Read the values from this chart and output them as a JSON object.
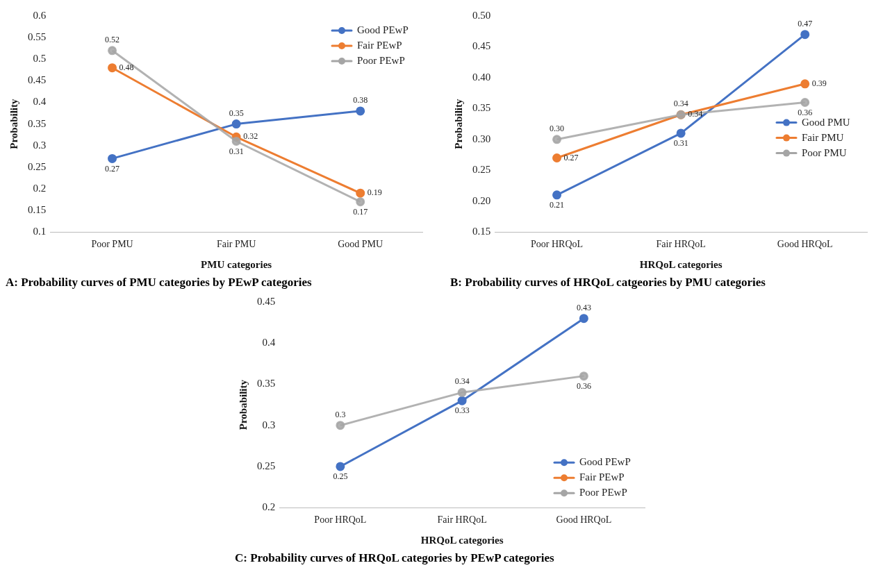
{
  "chart_data": [
    {
      "type": "line",
      "title": "A: Probability curves of PMU categories by PEwP categories",
      "xlabel": "PMU categories",
      "ylabel": "Probability",
      "categories": [
        "Poor PMU",
        "Fair PMU",
        "Good PMU"
      ],
      "series": [
        {
          "name": "Good PEwP",
          "color": "#4472c4",
          "values": [
            0.27,
            0.35,
            0.38
          ],
          "value_labels": [
            "0.27",
            "0.35",
            "0.38"
          ]
        },
        {
          "name": "Fair PEwP",
          "color": "#ed7d31",
          "values": [
            0.48,
            0.32,
            0.19
          ],
          "value_labels": [
            "0.48",
            "0.32",
            "0.19"
          ]
        },
        {
          "name": "Poor PEwP",
          "color": "#a5a5a5",
          "values": [
            0.52,
            0.31,
            0.17
          ],
          "value_labels": [
            "0.52",
            "0.31",
            "0.17"
          ]
        }
      ],
      "ylim": [
        0.1,
        0.6
      ],
      "yticks": [
        0.1,
        0.15,
        0.2,
        0.25,
        0.3,
        0.35,
        0.4,
        0.45,
        0.5,
        0.55,
        0.6
      ],
      "grid": false,
      "legend": "top right",
      "marker": "circle",
      "line_style": "solid"
    },
    {
      "type": "line",
      "title": "B: Probability curves of HRQoL catgeories by PMU categories",
      "xlabel": "HRQoL categories",
      "ylabel": "Probability",
      "categories": [
        "Poor HRQoL",
        "Fair HRQoL",
        "Good HRQoL"
      ],
      "series": [
        {
          "name": "Good PMU",
          "color": "#4472c4",
          "values": [
            0.21,
            0.31,
            0.47
          ],
          "value_labels": [
            "0.21",
            "0.31",
            "0.47"
          ]
        },
        {
          "name": "Fair PMU",
          "color": "#ed7d31",
          "values": [
            0.27,
            0.34,
            0.39
          ],
          "value_labels": [
            "0.27",
            "0.34",
            "0.39"
          ]
        },
        {
          "name": "Poor PMU",
          "color": "#a5a5a5",
          "values": [
            0.3,
            0.34,
            0.36
          ],
          "value_labels": [
            "0.30",
            "0.34",
            "0.36"
          ]
        }
      ],
      "ylim": [
        0.15,
        0.5
      ],
      "yticks": [
        {
          "value": 0.15,
          "label": "0.15"
        },
        {
          "value": 0.2,
          "label": "0.20"
        },
        {
          "value": 0.25,
          "label": "0.25"
        },
        {
          "value": 0.3,
          "label": "0.30"
        },
        {
          "value": 0.35,
          "label": "0.35"
        },
        {
          "value": 0.4,
          "label": "0.40"
        },
        {
          "value": 0.45,
          "label": "0.45"
        },
        {
          "value": 0.5,
          "label": "0.50"
        }
      ],
      "grid": false,
      "legend": "right",
      "marker": "circle",
      "line_style": "solid"
    },
    {
      "type": "line",
      "title": "C: Probability curves of HRQoL categories by PEwP categories",
      "xlabel": "HRQoL categories",
      "ylabel": "Probability",
      "categories": [
        "Poor HRQoL",
        "Fair HRQoL",
        "Good HRQoL"
      ],
      "series": [
        {
          "name": "Good PEwP",
          "color": "#4472c4",
          "values": [
            0.25,
            0.33,
            0.43
          ],
          "value_labels": [
            "0.25",
            "0.33",
            "0.43"
          ]
        },
        {
          "name": "Fair PEwP",
          "color": "#ed7d31",
          "values": [
            null,
            null,
            null
          ]
        },
        {
          "name": "Poor PEwP",
          "color": "#a5a5a5",
          "values": [
            0.3,
            0.34,
            0.36
          ],
          "value_labels": [
            "0.3",
            "0.34",
            "0.36"
          ]
        }
      ],
      "ylim": [
        0.2,
        0.45
      ],
      "yticks": [
        0.2,
        0.25,
        0.3,
        0.35,
        0.4,
        0.45
      ],
      "grid": false,
      "legend": "bottom right",
      "marker": "circle",
      "line_style": "solid"
    }
  ]
}
